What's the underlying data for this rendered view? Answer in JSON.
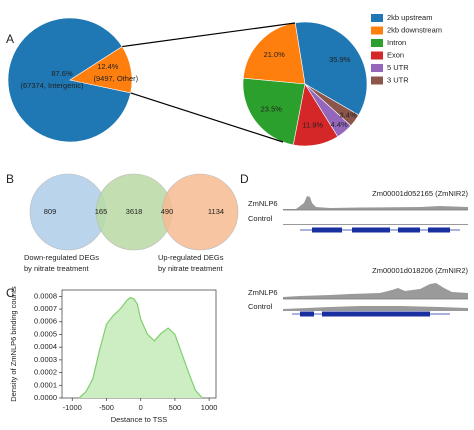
{
  "chart_data": [
    {
      "type": "pie",
      "panel": "A",
      "values": [
        87.6,
        12.4
      ],
      "value_labels": [
        "87.6%",
        "12.4%"
      ],
      "labels": [
        "(67374, Intergenic)",
        "(9497, Other)"
      ],
      "colors": [
        "#1f77b4",
        "#ff7f0e"
      ]
    },
    {
      "type": "pie",
      "categories": [
        "2kb upstream",
        "2kb downstream",
        "Intron",
        "Exon",
        "5 UTR",
        "3 UTR"
      ],
      "values": [
        35.9,
        21.0,
        23.5,
        11.9,
        4.4,
        3.4
      ],
      "value_labels": [
        "35.9%",
        "21.0%",
        "23.5%",
        "11.9%",
        "4.4%",
        "3.4%"
      ],
      "colors": [
        "#1f77b4",
        "#ff7f0e",
        "#2ca02c",
        "#d62728",
        "#9467bd",
        "#8c564b"
      ],
      "legend": "upper right"
    },
    {
      "type": "venn",
      "panel": "B",
      "regions": [
        809,
        165,
        3618,
        490,
        1134
      ],
      "labels": [
        [
          "Down-regulated DEGs",
          "by nitrate treatment"
        ],
        null,
        [
          "Up-regulated DEGs",
          "by nitrate treatment"
        ]
      ],
      "colors": [
        "#aecde8",
        "#b9d9a3",
        "#f6bb90"
      ]
    },
    {
      "type": "line",
      "panel": "C",
      "ylabel": "Density of ZmNLP6 binding counts",
      "xlabel": "Destance to TSS",
      "x": [
        -900,
        -800,
        -700,
        -600,
        -500,
        -400,
        -300,
        -200,
        -150,
        -100,
        -50,
        0,
        100,
        200,
        300,
        400,
        500,
        600,
        700,
        800,
        900
      ],
      "values": [
        0.0,
        5e-05,
        0.00015,
        0.00038,
        0.00058,
        0.00065,
        0.0007,
        0.00077,
        0.00079,
        0.00078,
        0.00074,
        0.00062,
        0.0005,
        0.00045,
        0.00051,
        0.00055,
        0.0005,
        0.00035,
        0.0002,
        6e-05,
        0.0
      ],
      "color": "#7fcf6f",
      "fill": "#cdeec3",
      "xlim": [
        -1150,
        1100
      ],
      "xticks": [
        -1000,
        -500,
        0,
        500,
        1000
      ],
      "ylim": [
        0,
        0.00085
      ],
      "yticks": [
        {
          "value": 0,
          "label": "0.0000"
        },
        {
          "value": 0.0001,
          "label": "0.0001"
        },
        {
          "value": 0.0002,
          "label": "0.0002"
        },
        {
          "value": 0.0003,
          "label": "0.0003"
        },
        {
          "value": 0.0004,
          "label": "0.0004"
        },
        {
          "value": 0.0005,
          "label": "0.0005"
        },
        {
          "value": 0.0006,
          "label": "0.0006"
        },
        {
          "value": 0.0007,
          "label": "0.0007"
        },
        {
          "value": 0.0008,
          "label": "0.0008"
        }
      ]
    }
  ],
  "genome_tracks": {
    "panel": "D",
    "tracks": [
      {
        "title": "Zm00001d052165 (ZmNIR2)",
        "sample": "ZmNLP6",
        "control": "Control"
      },
      {
        "title": "Zm00001d018206 (ZmNIR2)",
        "sample": "ZmNLP6",
        "control": "Control"
      }
    ]
  }
}
